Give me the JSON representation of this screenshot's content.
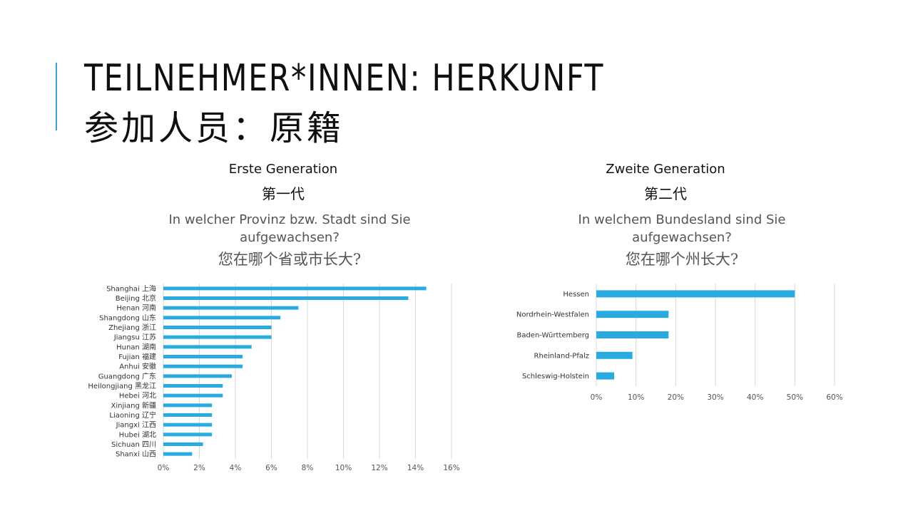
{
  "title": {
    "line1": "TEILNEHMER*INNEN: HERKUNFT",
    "line2": "参加人员：原籍"
  },
  "left": {
    "generation": "Erste Generation",
    "generation_cn": "第一代",
    "question_line1": "In welcher Provinz bzw. Stadt sind Sie",
    "question_line2": "aufgewachsen?",
    "question_cn": "您在哪个省或市长大?"
  },
  "right": {
    "generation": "Zweite Generation",
    "generation_cn": "第二代",
    "question_line1": "In welchem Bundesland sind Sie",
    "question_line2": "aufgewachsen?",
    "question_cn": "您在哪个州长大?"
  },
  "colors": {
    "bar": "#29abe2",
    "grid": "#d9d9d9",
    "accent": "#3aa5d6"
  },
  "chart_data": [
    {
      "type": "bar",
      "orientation": "horizontal",
      "categories": [
        "Shanghai 上海",
        "Beijing 北京",
        "Henan 河南",
        "Shangdong 山东",
        "Zhejiang 浙江",
        "Jiangsu 江苏",
        "Hunan 湖南",
        "Fujian 福建",
        "Anhui 安徽",
        "Guangdong 广东",
        "Heilongjiang 黑龙江",
        "Hebei 河北",
        "Xinjiang 新疆",
        "Liaoning 辽宁",
        "Jiangxi 江西",
        "Hubei 湖北",
        "Sichuan 四川",
        "Shanxi 山西"
      ],
      "values": [
        14.6,
        13.6,
        7.5,
        6.5,
        6.0,
        6.0,
        4.9,
        4.4,
        4.4,
        3.8,
        3.3,
        3.3,
        2.7,
        2.7,
        2.7,
        2.7,
        2.2,
        1.6
      ],
      "xlim": [
        0,
        16
      ],
      "ticks": [
        "0%",
        "2%",
        "4%",
        "6%",
        "8%",
        "10%",
        "12%",
        "14%",
        "16%"
      ],
      "grid": true
    },
    {
      "type": "bar",
      "orientation": "horizontal",
      "categories": [
        "Hessen",
        "Nordrhein-Westfalen",
        "Baden-Württemberg",
        "Rheinland-Pfalz",
        "Schleswig-Holstein"
      ],
      "values": [
        50.0,
        18.2,
        18.2,
        9.1,
        4.5
      ],
      "xlim": [
        0,
        60
      ],
      "ticks": [
        "0%",
        "10%",
        "20%",
        "30%",
        "40%",
        "50%",
        "60%"
      ],
      "grid": true
    }
  ]
}
